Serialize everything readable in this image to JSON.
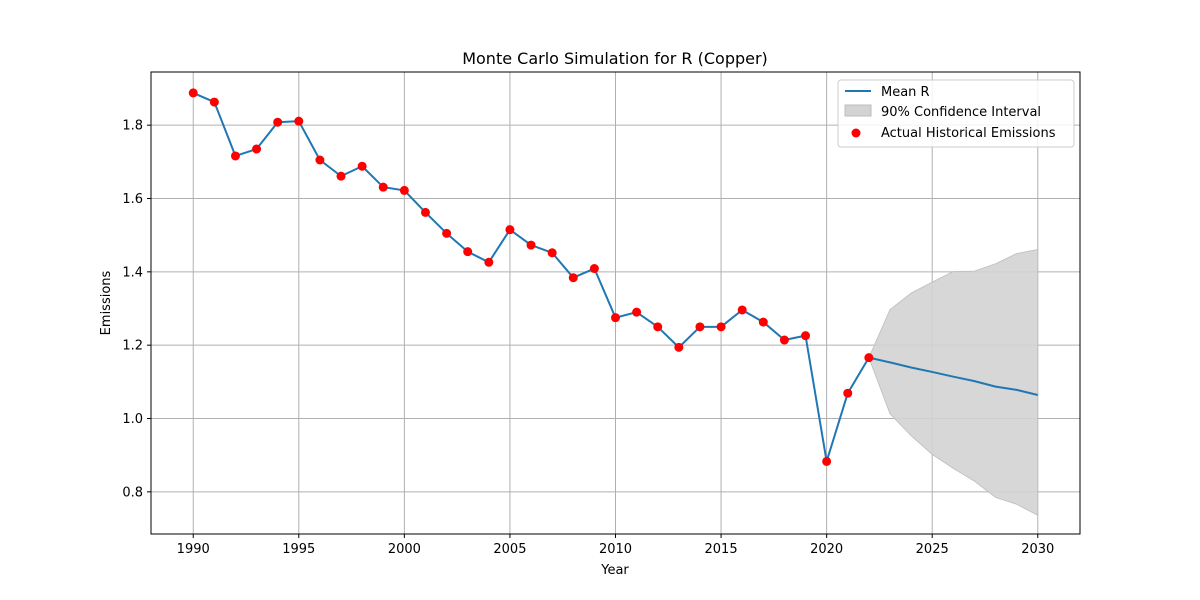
{
  "chart_data": {
    "type": "line",
    "title": "Monte Carlo Simulation for R (Copper)",
    "xlabel": "Year",
    "ylabel": "Emissions",
    "xlim": [
      1988,
      2032
    ],
    "ylim": [
      0.685,
      1.945
    ],
    "xticks": [
      1990,
      1995,
      2000,
      2005,
      2010,
      2015,
      2020,
      2025,
      2030
    ],
    "yticks": [
      0.8,
      1.0,
      1.2,
      1.4,
      1.6,
      1.8
    ],
    "ytick_labels": [
      "0.8",
      "1.0",
      "1.2",
      "1.4",
      "1.6",
      "1.8"
    ],
    "grid": true,
    "legend_position": "top-right",
    "colors": {
      "mean_line": "#1f77b4",
      "ci_fill": "#d3d3d3",
      "ci_edge": "#bdbdbd",
      "historical_points": "#ff0000",
      "grid": "#b0b0b0"
    },
    "series": [
      {
        "name": "Mean R",
        "type": "line",
        "x": [
          1990,
          1991,
          1992,
          1993,
          1994,
          1995,
          1996,
          1997,
          1998,
          1999,
          2000,
          2001,
          2002,
          2003,
          2004,
          2005,
          2006,
          2007,
          2008,
          2009,
          2010,
          2011,
          2012,
          2013,
          2014,
          2015,
          2016,
          2017,
          2018,
          2019,
          2020,
          2021,
          2022,
          2023,
          2024,
          2025,
          2026,
          2027,
          2028,
          2029,
          2030
        ],
        "values": [
          1.888,
          1.863,
          1.716,
          1.735,
          1.808,
          1.811,
          1.705,
          1.661,
          1.688,
          1.631,
          1.622,
          1.562,
          1.505,
          1.455,
          1.426,
          1.515,
          1.473,
          1.452,
          1.384,
          1.409,
          1.275,
          1.29,
          1.25,
          1.194,
          1.25,
          1.25,
          1.296,
          1.263,
          1.214,
          1.226,
          0.883,
          1.069,
          1.166,
          1.153,
          1.139,
          1.127,
          1.114,
          1.102,
          1.087,
          1.078,
          1.064
        ]
      },
      {
        "name": "90% Confidence Interval",
        "type": "band",
        "x": [
          2022,
          2023,
          2024,
          2025,
          2026,
          2027,
          2028,
          2029,
          2030
        ],
        "lower": [
          1.166,
          1.013,
          0.953,
          0.902,
          0.864,
          0.829,
          0.785,
          0.766,
          0.736
        ],
        "upper": [
          1.166,
          1.297,
          1.342,
          1.372,
          1.401,
          1.402,
          1.422,
          1.45,
          1.461
        ]
      },
      {
        "name": "Actual Historical Emissions",
        "type": "scatter",
        "x": [
          1990,
          1991,
          1992,
          1993,
          1994,
          1995,
          1996,
          1997,
          1998,
          1999,
          2000,
          2001,
          2002,
          2003,
          2004,
          2005,
          2006,
          2007,
          2008,
          2009,
          2010,
          2011,
          2012,
          2013,
          2014,
          2015,
          2016,
          2017,
          2018,
          2019,
          2020,
          2021,
          2022
        ],
        "values": [
          1.888,
          1.863,
          1.716,
          1.735,
          1.808,
          1.811,
          1.705,
          1.661,
          1.688,
          1.631,
          1.622,
          1.562,
          1.505,
          1.455,
          1.426,
          1.515,
          1.473,
          1.452,
          1.384,
          1.409,
          1.275,
          1.29,
          1.25,
          1.194,
          1.25,
          1.25,
          1.296,
          1.263,
          1.214,
          1.226,
          0.883,
          1.069,
          1.166
        ]
      }
    ]
  }
}
